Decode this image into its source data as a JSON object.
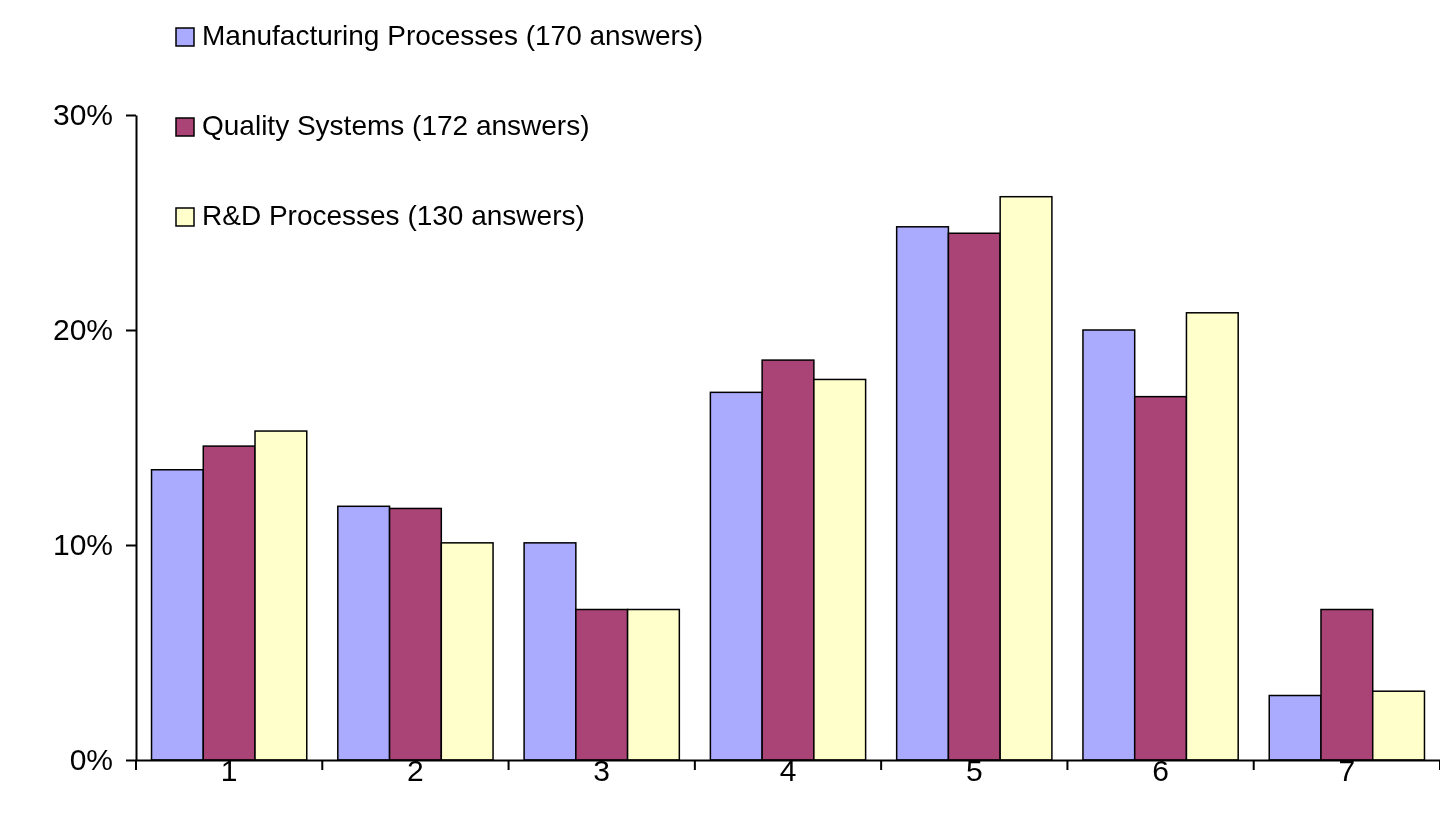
{
  "chart_data": {
    "type": "bar",
    "categories": [
      "1",
      "2",
      "3",
      "4",
      "5",
      "6",
      "7"
    ],
    "series": [
      {
        "name": "Manufacturing Processes (170 answers)",
        "color": "#aaaaff",
        "values": [
          13.5,
          11.8,
          10.1,
          17.1,
          24.8,
          20.0,
          3.0
        ]
      },
      {
        "name": "Quality Systems (172 answers)",
        "color": "#aa4477",
        "values": [
          14.6,
          11.7,
          7.0,
          18.6,
          24.5,
          16.9,
          7.0
        ]
      },
      {
        "name": "R&D Processes (130 answers)",
        "color": "#ffffcc",
        "values": [
          15.3,
          10.1,
          7.0,
          17.7,
          26.2,
          20.8,
          3.2
        ]
      }
    ],
    "ylim": [
      0,
      30
    ],
    "yticks": [
      {
        "value": 0,
        "label": "0%"
      },
      {
        "value": 10,
        "label": "10%"
      },
      {
        "value": 20,
        "label": "20%"
      },
      {
        "value": 30,
        "label": "30%"
      }
    ],
    "grid": false,
    "legend": "top left"
  }
}
